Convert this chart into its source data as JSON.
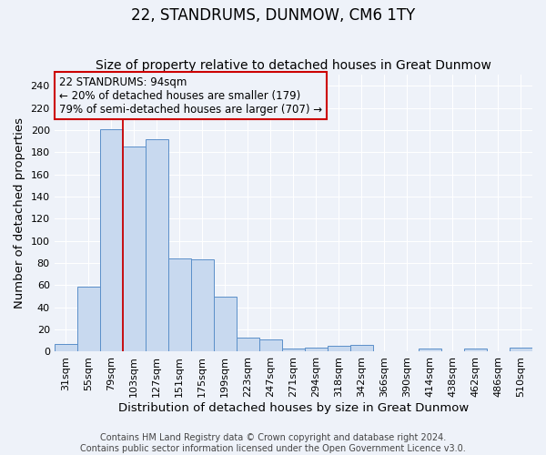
{
  "title": "22, STANDRUMS, DUNMOW, CM6 1TY",
  "subtitle": "Size of property relative to detached houses in Great Dunmow",
  "xlabel": "Distribution of detached houses by size in Great Dunmow",
  "ylabel": "Number of detached properties",
  "bar_labels": [
    "31sqm",
    "55sqm",
    "79sqm",
    "103sqm",
    "127sqm",
    "151sqm",
    "175sqm",
    "199sqm",
    "223sqm",
    "247sqm",
    "271sqm",
    "294sqm",
    "318sqm",
    "342sqm",
    "366sqm",
    "390sqm",
    "414sqm",
    "438sqm",
    "462sqm",
    "486sqm",
    "510sqm"
  ],
  "bar_heights": [
    7,
    59,
    201,
    185,
    192,
    84,
    83,
    50,
    13,
    11,
    3,
    4,
    5,
    6,
    0,
    0,
    3,
    0,
    3,
    0,
    4
  ],
  "bar_color": "#c8d9ef",
  "bar_edge_color": "#5b8fc9",
  "ylim": [
    0,
    250
  ],
  "yticks": [
    0,
    20,
    40,
    60,
    80,
    100,
    120,
    140,
    160,
    180,
    200,
    220,
    240
  ],
  "vline_x_index": 3,
  "vline_color": "#cc0000",
  "annotation_line1": "22 STANDRUMS: 94sqm",
  "annotation_line2": "← 20% of detached houses are smaller (179)",
  "annotation_line3": "79% of semi-detached houses are larger (707) →",
  "footer_line1": "Contains HM Land Registry data © Crown copyright and database right 2024.",
  "footer_line2": "Contains public sector information licensed under the Open Government Licence v3.0.",
  "bg_color": "#eef2f9",
  "grid_color": "#ffffff",
  "title_fontsize": 12,
  "subtitle_fontsize": 10,
  "axis_label_fontsize": 9.5,
  "tick_fontsize": 8,
  "annotation_fontsize": 8.5,
  "footer_fontsize": 7
}
